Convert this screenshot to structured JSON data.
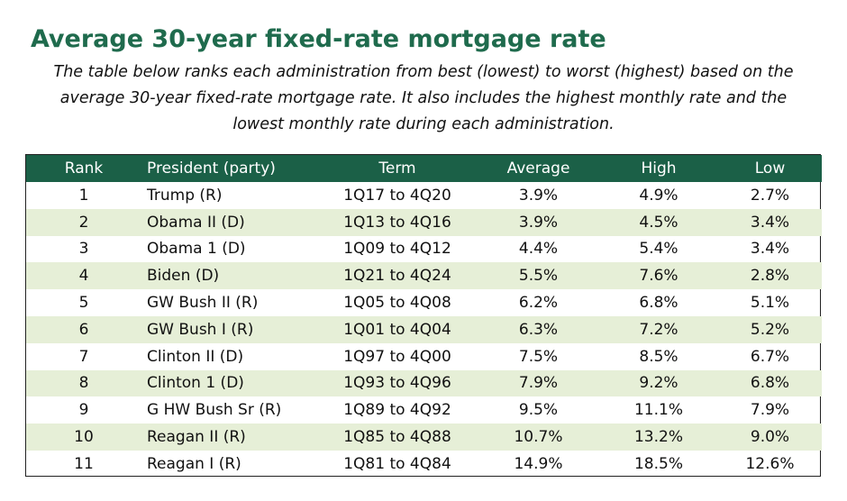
{
  "title": "Average 30-year fixed-rate mortgage rate",
  "subtitle": "The table below ranks each administration from best (lowest) to worst (highest) based on the average 30-year fixed-rate mortgage rate.  It also includes the highest monthly rate and the lowest monthly rate during each administration.",
  "chart_data": {
    "type": "table",
    "title": "Average 30-year fixed-rate mortgage rate",
    "columns": [
      "Rank",
      "President (party)",
      "Term",
      "Average",
      "High",
      "Low"
    ],
    "rows": [
      [
        "1",
        "Trump (R)",
        "1Q17 to 4Q20",
        "3.9%",
        "4.9%",
        "2.7%"
      ],
      [
        "2",
        "Obama II (D)",
        "1Q13 to 4Q16",
        "3.9%",
        "4.5%",
        "3.4%"
      ],
      [
        "3",
        "Obama 1 (D)",
        "1Q09 to 4Q12",
        "4.4%",
        "5.4%",
        "3.4%"
      ],
      [
        "4",
        "Biden (D)",
        "1Q21 to 4Q24",
        "5.5%",
        "7.6%",
        "2.8%"
      ],
      [
        "5",
        "GW Bush II (R)",
        "1Q05 to 4Q08",
        "6.2%",
        "6.8%",
        "5.1%"
      ],
      [
        "6",
        "GW Bush I (R)",
        "1Q01 to 4Q04",
        "6.3%",
        "7.2%",
        "5.2%"
      ],
      [
        "7",
        "Clinton II (D)",
        "1Q97 to 4Q00",
        "7.5%",
        "8.5%",
        "6.7%"
      ],
      [
        "8",
        "Clinton 1 (D)",
        "1Q93 to 4Q96",
        "7.9%",
        "9.2%",
        "6.8%"
      ],
      [
        "9",
        "G HW Bush Sr (R)",
        "1Q89 to 4Q92",
        "9.5%",
        "11.1%",
        "7.9%"
      ],
      [
        "10",
        "Reagan II (R)",
        "1Q85 to 4Q88",
        "10.7%",
        "13.2%",
        "9.0%"
      ],
      [
        "11",
        "Reagan I (R)",
        "1Q81 to 4Q84",
        "14.9%",
        "18.5%",
        "12.6%"
      ]
    ]
  },
  "colors": {
    "title": "#1f6b4d",
    "header_bg": "#1b6047",
    "header_text": "#ffffff",
    "alt_row_bg": "#e6efd7"
  }
}
